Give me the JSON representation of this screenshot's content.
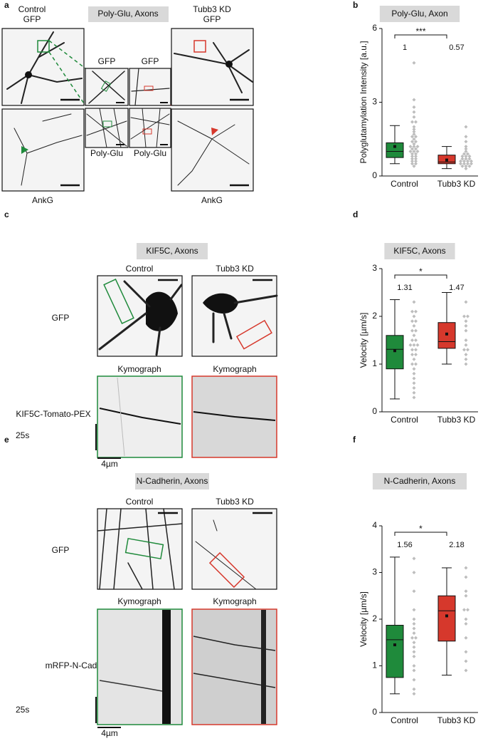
{
  "figure": {
    "panel_a": {
      "label": "a",
      "title": "Poly-Glu, Axons",
      "left_header": [
        "Control",
        "GFP"
      ],
      "right_header": [
        "Tubb3 KD",
        "GFP"
      ],
      "inset_headers": [
        "GFP",
        "GFP"
      ],
      "inset_footers": [
        "Poly-Glu",
        "Poly-Glu"
      ],
      "bottom_labels": [
        "AnkG",
        "AnkG"
      ]
    },
    "panel_c": {
      "label": "c",
      "title": "KIF5C, Axons",
      "columns": [
        "Control",
        "Tubb3 KD"
      ],
      "row_labels": [
        "GFP",
        "KIF5C-Tomato-PEX"
      ],
      "kymograph_labels": [
        "Kymograph",
        "Kymograph"
      ],
      "time_scale": "25s",
      "length_scale": "4µm"
    },
    "panel_e": {
      "label": "e",
      "title": "N-Cadherin, Axons",
      "columns": [
        "Control",
        "Tubb3 KD"
      ],
      "row_labels": [
        "GFP",
        "mRFP-N-Cad"
      ],
      "kymograph_labels": [
        "Kymograph",
        "Kymograph"
      ],
      "time_scale": "25s",
      "length_scale": "4µm"
    }
  },
  "chart_data": [
    {
      "type": "box",
      "label": "b",
      "title": "Poly-Glu, Axon",
      "ylabel": "Polyglutamylation Intensity [a.u.]",
      "categories": [
        "Control",
        "Tubb3 KD"
      ],
      "colors": [
        "#1f8a3b",
        "#d6382c"
      ],
      "ylim": [
        0,
        6
      ],
      "yticks": [
        0,
        3,
        6
      ],
      "whisker_low": [
        0.5,
        0.3
      ],
      "q1": [
        0.75,
        0.5
      ],
      "median": [
        1,
        0.57
      ],
      "q3": [
        1.35,
        0.85
      ],
      "whisker_high": [
        2.05,
        1.2
      ],
      "mean": [
        1.2,
        0.65
      ],
      "points": [
        [
          4.6,
          3.1,
          2.8,
          2.6,
          2.4,
          2.2,
          2.2,
          2.0,
          1.9,
          1.8,
          1.7,
          1.6,
          1.6,
          1.5,
          1.4,
          1.4,
          1.3,
          1.2,
          1.2,
          1.2,
          1.1,
          1.1,
          1.0,
          1.0,
          1.0,
          0.9,
          0.9,
          0.8,
          0.8,
          0.7,
          0.7,
          0.6,
          0.6,
          0.5,
          0.5,
          0.4
        ],
        [
          2.0,
          1.6,
          1.4,
          1.2,
          1.1,
          1.0,
          0.9,
          0.9,
          0.8,
          0.8,
          0.8,
          0.7,
          0.7,
          0.7,
          0.6,
          0.6,
          0.6,
          0.6,
          0.5,
          0.5,
          0.5,
          0.5,
          0.4,
          0.4,
          0.4,
          0.3
        ]
      ],
      "significance": "***"
    },
    {
      "type": "box",
      "label": "d",
      "title": "KIF5C, Axons",
      "ylabel": "Velocity [µm/s]",
      "categories": [
        "Control",
        "Tubb3 KD"
      ],
      "colors": [
        "#1f8a3b",
        "#d6382c"
      ],
      "ylim": [
        0,
        3
      ],
      "yticks": [
        0,
        1,
        2,
        3
      ],
      "whisker_low": [
        0.27,
        1.0
      ],
      "q1": [
        0.9,
        1.33
      ],
      "median": [
        1.31,
        1.47
      ],
      "q3": [
        1.6,
        1.87
      ],
      "whisker_high": [
        2.35,
        2.5
      ],
      "mean": [
        1.28,
        1.63
      ],
      "points": [
        [
          2.3,
          2.1,
          2.1,
          2.0,
          1.9,
          1.9,
          1.8,
          1.7,
          1.7,
          1.6,
          1.5,
          1.5,
          1.4,
          1.4,
          1.4,
          1.3,
          1.3,
          1.2,
          1.2,
          1.1,
          1.0,
          1.0,
          0.9,
          0.8,
          0.7,
          0.6,
          0.5,
          0.4,
          0.3
        ],
        [
          2.3,
          2.0,
          2.0,
          1.9,
          1.8,
          1.7,
          1.5,
          1.4,
          1.3,
          1.3,
          1.2,
          1.1,
          1.0
        ]
      ],
      "significance": "*"
    },
    {
      "type": "box",
      "label": "f",
      "title": "N-Cadherin, Axons",
      "ylabel": "Velocity [µm/s]",
      "categories": [
        "Control",
        "Tubb3 KD"
      ],
      "colors": [
        "#1f8a3b",
        "#d6382c"
      ],
      "ylim": [
        0,
        4
      ],
      "yticks": [
        0,
        1,
        2,
        3,
        4
      ],
      "whisker_low": [
        0.4,
        0.8
      ],
      "q1": [
        0.75,
        1.53
      ],
      "median": [
        1.56,
        2.18
      ],
      "q3": [
        1.87,
        2.5
      ],
      "whisker_high": [
        3.33,
        3.1
      ],
      "mean": [
        1.45,
        2.07
      ],
      "points": [
        [
          3.3,
          3.0,
          2.6,
          2.2,
          2.0,
          1.9,
          1.8,
          1.7,
          1.6,
          1.6,
          1.5,
          1.4,
          1.3,
          1.2,
          1.0,
          0.9,
          0.7,
          0.5,
          0.4
        ],
        [
          3.1,
          2.9,
          2.6,
          2.5,
          2.2,
          2.2,
          2.0,
          1.9,
          1.6,
          1.3,
          1.1,
          0.9
        ]
      ],
      "significance": "*"
    }
  ]
}
